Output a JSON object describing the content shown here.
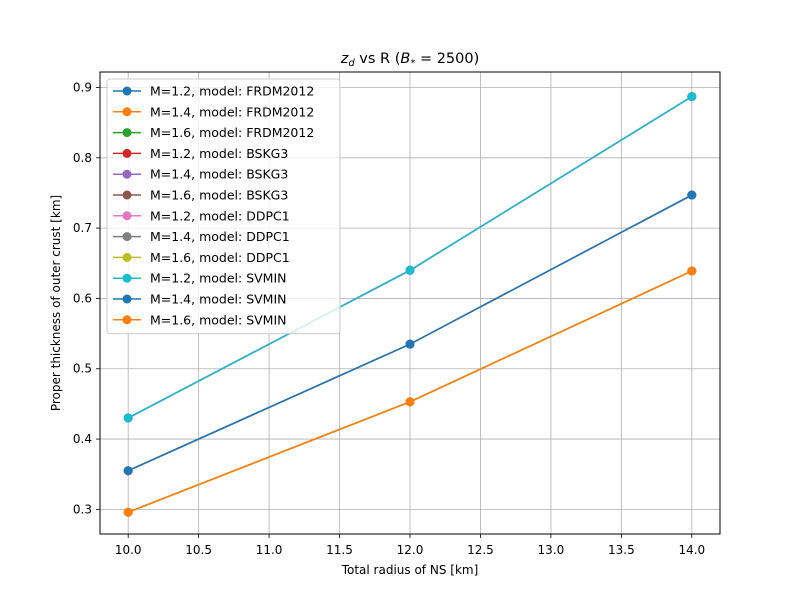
{
  "chart_data": {
    "type": "line",
    "title_main": "z",
    "title_sub": "d",
    "title_mid": " vs R (",
    "title_b": "B",
    "title_bsub": "*",
    "title_end": " = 2500)",
    "xlabel": "Total radius of NS [km]",
    "ylabel": "Proper thickness of outer crust [km]",
    "xlim": [
      9.8,
      14.2
    ],
    "ylim": [
      0.265,
      0.922
    ],
    "xticks": [
      "10.0",
      "10.5",
      "11.0",
      "11.5",
      "12.0",
      "12.5",
      "13.0",
      "13.5",
      "14.0"
    ],
    "yticks": [
      "0.3",
      "0.4",
      "0.5",
      "0.6",
      "0.7",
      "0.8",
      "0.9"
    ],
    "grid": true,
    "legend_position": "upper-left",
    "x": [
      10.0,
      12.0,
      14.0
    ],
    "series": [
      {
        "name": "M=1.2, model: FRDM2012",
        "color": "#1f77b4",
        "values": [
          0.43,
          0.64,
          0.887
        ]
      },
      {
        "name": "M=1.4, model: FRDM2012",
        "color": "#ff7f0e",
        "values": [
          0.355,
          0.535,
          0.747
        ]
      },
      {
        "name": "M=1.6, model: FRDM2012",
        "color": "#2ca02c",
        "values": [
          0.296,
          0.453,
          0.639
        ]
      },
      {
        "name": "M=1.2, model: BSKG3",
        "color": "#d62728",
        "values": [
          0.43,
          0.64,
          0.887
        ]
      },
      {
        "name": "M=1.4, model: BSKG3",
        "color": "#9467bd",
        "values": [
          0.355,
          0.535,
          0.747
        ]
      },
      {
        "name": "M=1.6, model: BSKG3",
        "color": "#8c564b",
        "values": [
          0.296,
          0.453,
          0.639
        ]
      },
      {
        "name": "M=1.2, model: DDPC1",
        "color": "#e377c2",
        "values": [
          0.43,
          0.64,
          0.887
        ]
      },
      {
        "name": "M=1.4, model: DDPC1",
        "color": "#7f7f7f",
        "values": [
          0.355,
          0.535,
          0.747
        ]
      },
      {
        "name": "M=1.6, model: DDPC1",
        "color": "#bcbd22",
        "values": [
          0.296,
          0.453,
          0.639
        ]
      },
      {
        "name": "M=1.2, model: SVMIN",
        "color": "#17becf",
        "values": [
          0.43,
          0.64,
          0.887
        ]
      },
      {
        "name": "M=1.4, model: SVMIN",
        "color": "#1f77b4",
        "values": [
          0.355,
          0.535,
          0.747
        ]
      },
      {
        "name": "M=1.6, model: SVMIN",
        "color": "#ff7f0e",
        "values": [
          0.296,
          0.453,
          0.639
        ]
      }
    ]
  }
}
